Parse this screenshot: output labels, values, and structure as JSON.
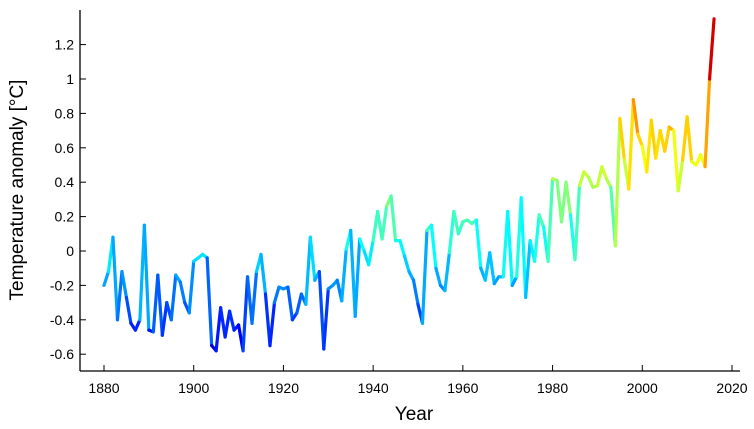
{
  "chart_data": {
    "type": "line",
    "title": "",
    "xlabel": "Year",
    "ylabel": "Temperature anomaly [°C]",
    "xlim": [
      1875,
      2020
    ],
    "ylim": [
      -0.65,
      1.4
    ],
    "x_ticks": [
      1880,
      1900,
      1920,
      1940,
      1960,
      1980,
      2000,
      2020
    ],
    "y_ticks": [
      -0.6,
      -0.4,
      -0.2,
      0,
      0.2,
      0.4,
      0.6,
      0.8,
      1,
      1.2
    ],
    "x_tick_labels": [
      "1880",
      "1900",
      "1920",
      "1940",
      "1960",
      "1980",
      "2000",
      "2020"
    ],
    "y_tick_labels": [
      "-0.6",
      "-0.4",
      "-0.2",
      "0",
      "0.2",
      "0.4",
      "0.6",
      "0.8",
      "1",
      "1.2"
    ],
    "grid": false,
    "legend": "none",
    "colormap": "jet (colored by temperature anomaly value)",
    "series": [
      {
        "x": [
          1880,
          1881,
          1882,
          1883,
          1884,
          1885,
          1886,
          1887,
          1888,
          1889,
          1890,
          1891,
          1892,
          1893,
          1894,
          1895,
          1896,
          1897,
          1898,
          1899,
          1900,
          1901,
          1902,
          1903,
          1904,
          1905,
          1906,
          1907,
          1908,
          1909,
          1910,
          1911,
          1912,
          1913,
          1914,
          1915,
          1916,
          1917,
          1918,
          1919,
          1920,
          1921,
          1922,
          1923,
          1924,
          1925,
          1926,
          1927,
          1928,
          1929,
          1930,
          1931,
          1932,
          1933,
          1934,
          1935,
          1936,
          1937,
          1938,
          1939,
          1940,
          1941,
          1942,
          1943,
          1944,
          1945,
          1946,
          1947,
          1948,
          1949,
          1950,
          1951,
          1952,
          1953,
          1954,
          1955,
          1956,
          1957,
          1958,
          1959,
          1960,
          1961,
          1962,
          1963,
          1964,
          1965,
          1966,
          1967,
          1968,
          1969,
          1970,
          1971,
          1972,
          1973,
          1974,
          1975,
          1976,
          1977,
          1978,
          1979,
          1980,
          1981,
          1982,
          1983,
          1984,
          1985,
          1986,
          1987,
          1988,
          1989,
          1990,
          1991,
          1992,
          1993,
          1994,
          1995,
          1996,
          1997,
          1998,
          1999,
          2000,
          2001,
          2002,
          2003,
          2004,
          2005,
          2006,
          2007,
          2008,
          2009,
          2010,
          2011,
          2012,
          2013,
          2014,
          2015,
          2016
        ],
        "y": [
          -0.2,
          -0.12,
          0.08,
          -0.4,
          -0.12,
          -0.27,
          -0.42,
          -0.46,
          -0.4,
          0.15,
          -0.46,
          -0.47,
          -0.14,
          -0.49,
          -0.3,
          -0.4,
          -0.14,
          -0.18,
          -0.3,
          -0.36,
          -0.06,
          -0.04,
          -0.02,
          -0.04,
          -0.55,
          -0.58,
          -0.33,
          -0.5,
          -0.35,
          -0.46,
          -0.43,
          -0.58,
          -0.15,
          -0.42,
          -0.12,
          -0.02,
          -0.25,
          -0.55,
          -0.3,
          -0.21,
          -0.22,
          -0.21,
          -0.4,
          -0.36,
          -0.25,
          -0.31,
          0.08,
          -0.17,
          -0.12,
          -0.57,
          -0.22,
          -0.2,
          -0.17,
          -0.29,
          0.01,
          0.12,
          -0.38,
          0.07,
          0.0,
          -0.08,
          0.06,
          0.23,
          0.07,
          0.26,
          0.32,
          0.06,
          0.06,
          -0.03,
          -0.12,
          -0.17,
          -0.31,
          -0.42,
          0.12,
          0.15,
          -0.1,
          -0.2,
          -0.23,
          -0.01,
          0.23,
          0.1,
          0.17,
          0.18,
          0.16,
          0.18,
          -0.1,
          -0.17,
          -0.01,
          -0.19,
          -0.15,
          -0.15,
          0.23,
          -0.2,
          -0.15,
          0.31,
          -0.27,
          0.06,
          -0.06,
          0.21,
          0.14,
          -0.06,
          0.42,
          0.41,
          0.17,
          0.4,
          0.21,
          -0.05,
          0.38,
          0.46,
          0.43,
          0.37,
          0.38,
          0.49,
          0.42,
          0.37,
          0.03,
          0.77,
          0.53,
          0.36,
          0.88,
          0.68,
          0.61,
          0.46,
          0.76,
          0.54,
          0.7,
          0.58,
          0.72,
          0.7,
          0.35,
          0.53,
          0.78,
          0.52,
          0.5,
          0.56,
          0.49,
          1.0,
          1.35
        ]
      }
    ]
  }
}
